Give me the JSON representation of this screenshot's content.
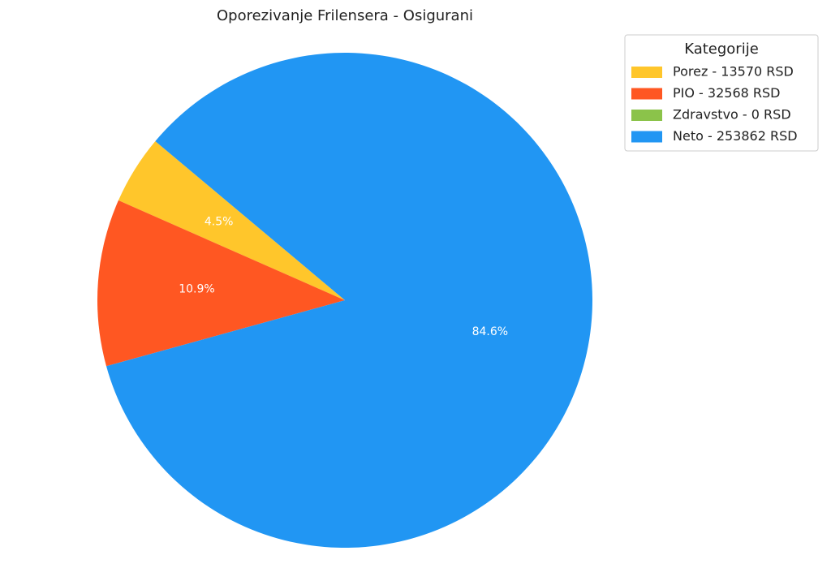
{
  "chart_data": {
    "type": "pie",
    "title": "Oporezivanje Frilensera - Osigurani",
    "legend_title": "Kategorije",
    "legend": "upper right",
    "categories": [
      "Porez - 13570 RSD",
      "PIO - 32568 RSD",
      "Zdravstvo - 0 RSD",
      "Neto - 253862 RSD"
    ],
    "values": [
      4.5,
      10.9,
      0,
      84.6
    ],
    "value_labels": [
      "4.5%",
      "10.9%",
      null,
      "84.6%"
    ],
    "colors": [
      "#ffc62b",
      "#ff5722",
      "#8bc34a",
      "#2196f3"
    ]
  }
}
